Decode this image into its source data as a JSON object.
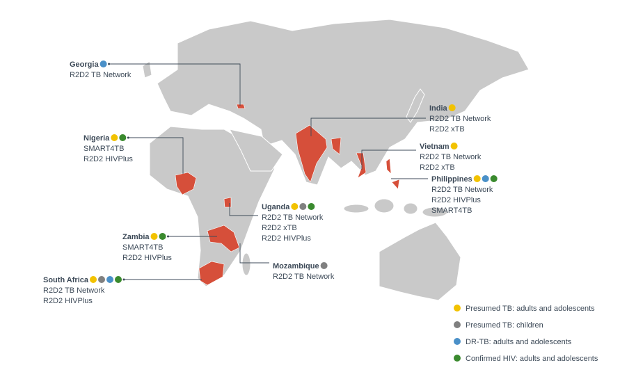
{
  "countries": [
    {
      "name": "Georgia",
      "markers": [
        "#4a90c8"
      ],
      "studies": [
        "R2D2 TB Network"
      ]
    },
    {
      "name": "Nigeria",
      "markers": [
        "#f2c200",
        "#3a8a2e"
      ],
      "studies": [
        "SMART4TB",
        "R2D2 HIVPlus"
      ]
    },
    {
      "name": "India",
      "markers": [
        "#f2c200"
      ],
      "studies": [
        "R2D2 TB Network",
        "R2D2 xTB"
      ]
    },
    {
      "name": "Vietnam",
      "markers": [
        "#f2c200"
      ],
      "studies": [
        "R2D2 TB Network",
        "R2D2 xTB"
      ]
    },
    {
      "name": "Philippines",
      "markers": [
        "#f2c200",
        "#4a90c8",
        "#3a8a2e"
      ],
      "studies": [
        "R2D2 TB Network",
        "R2D2 HIVPlus",
        "SMART4TB"
      ]
    },
    {
      "name": "Uganda",
      "markers": [
        "#f2c200",
        "#808080",
        "#3a8a2e"
      ],
      "studies": [
        "R2D2 TB Network",
        "R2D2 xTB",
        "R2D2 HIVPlus"
      ]
    },
    {
      "name": "Zambia",
      "markers": [
        "#f2c200",
        "#3a8a2e"
      ],
      "studies": [
        "SMART4TB",
        "R2D2 HIVPlus"
      ]
    },
    {
      "name": "Mozambique",
      "markers": [
        "#808080"
      ],
      "studies": [
        "R2D2 TB Network"
      ]
    },
    {
      "name": "South Africa",
      "markers": [
        "#f2c200",
        "#808080",
        "#4a90c8",
        "#3a8a2e"
      ],
      "studies": [
        "R2D2 TB Network",
        "R2D2 HIVPlus"
      ]
    }
  ],
  "legend": [
    {
      "label": "Presumed TB: adults and adolescents",
      "color": "#f2c200"
    },
    {
      "label": "Presumed TB: children",
      "color": "#808080"
    },
    {
      "label": "DR-TB: adults and adolescents",
      "color": "#4a90c8"
    },
    {
      "label": "Confirmed HIV: adults and adolescents",
      "color": "#3a8a2e"
    }
  ]
}
